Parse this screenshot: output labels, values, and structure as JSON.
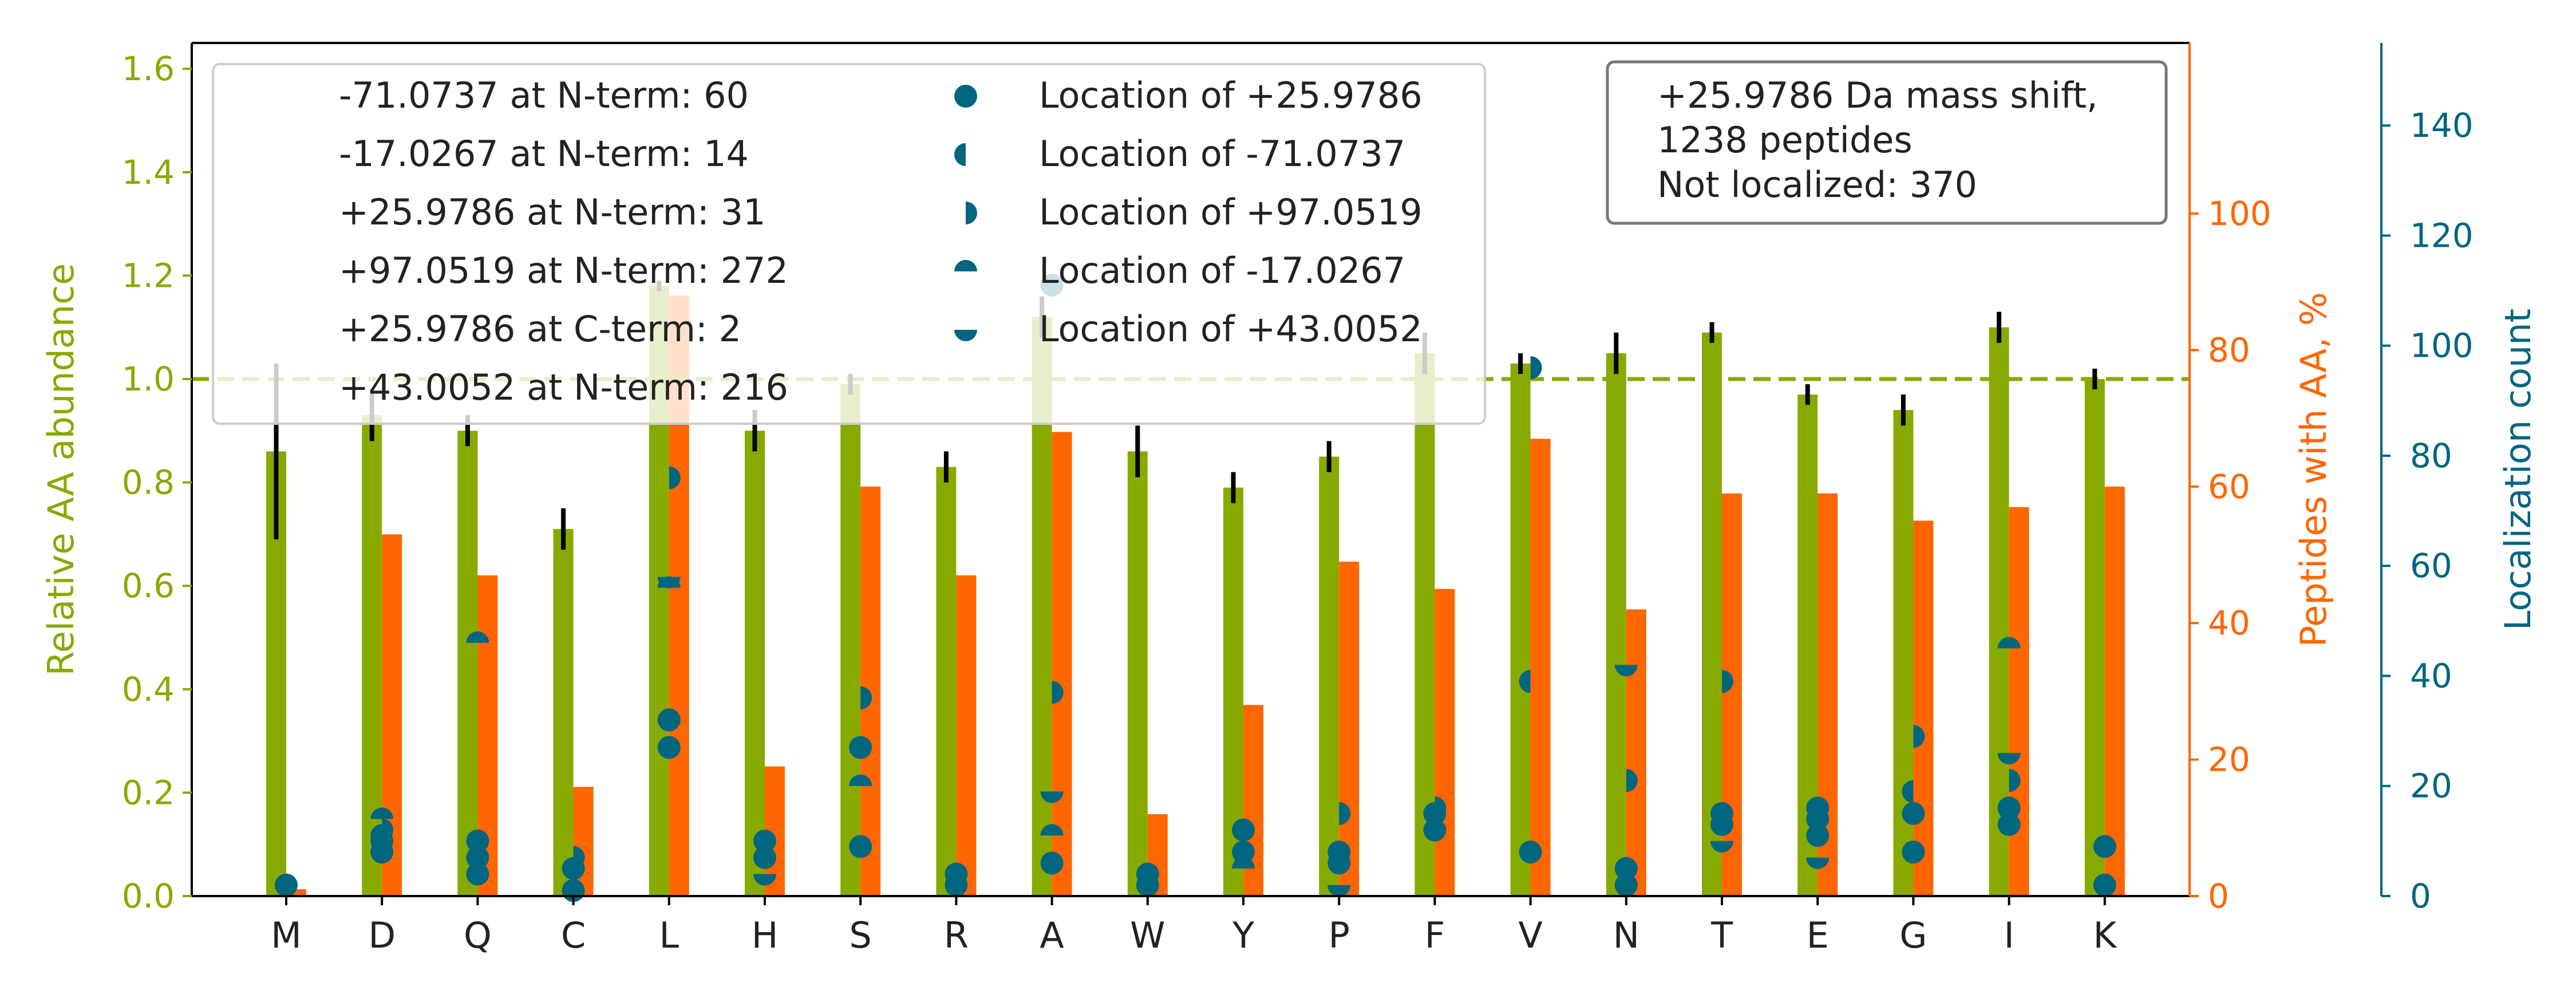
{
  "chart_data": {
    "type": "bar",
    "categories": [
      "M",
      "D",
      "Q",
      "C",
      "L",
      "H",
      "S",
      "R",
      "A",
      "W",
      "Y",
      "P",
      "F",
      "V",
      "N",
      "T",
      "E",
      "G",
      "I",
      "K"
    ],
    "axes": {
      "left": {
        "label": "Relative AA abundance",
        "ylim": [
          0,
          1.65
        ],
        "ticks": [
          "0.0",
          "0.2",
          "0.4",
          "0.6",
          "0.8",
          "1.0",
          "1.2",
          "1.4",
          "1.6"
        ],
        "color": "#88aa00"
      },
      "right1": {
        "label": "Peptides with AA, %",
        "ylim": [
          0,
          125
        ],
        "ticks": [
          "0",
          "20",
          "40",
          "60",
          "80",
          "100"
        ],
        "color": "#ff6600"
      },
      "right2": {
        "label": "Localization count",
        "ylim": [
          0,
          155
        ],
        "ticks": [
          "0",
          "20",
          "40",
          "60",
          "80",
          "100",
          "120",
          "140"
        ],
        "color": "#006680"
      }
    },
    "series": [
      {
        "name": "Relative AA abundance",
        "axis": "left",
        "color": "#88aa00",
        "values": [
          0.86,
          0.93,
          0.9,
          0.71,
          1.18,
          0.9,
          0.99,
          0.83,
          1.12,
          0.86,
          0.79,
          0.85,
          1.05,
          1.03,
          1.05,
          1.09,
          0.97,
          0.94,
          1.1,
          1.0
        ],
        "errors": [
          0.17,
          0.05,
          0.03,
          0.04,
          0.01,
          0.04,
          0.02,
          0.03,
          0.04,
          0.05,
          0.03,
          0.03,
          0.04,
          0.02,
          0.04,
          0.02,
          0.02,
          0.03,
          0.03,
          0.02
        ]
      },
      {
        "name": "Peptides with AA, %",
        "axis": "right1",
        "color": "#ff6600",
        "values": [
          1,
          53,
          47,
          16,
          88,
          19,
          60,
          47,
          68,
          12,
          28,
          49,
          45,
          67,
          42,
          59,
          59,
          55,
          57,
          60
        ]
      }
    ],
    "reference_line": {
      "value": 1.0,
      "axis": "left",
      "style": "dashed",
      "color": "#88aa00"
    },
    "localization_marker_kinds": {
      "full": "Location of +25.9786",
      "left": "Location of -71.0737",
      "right": "Location of +97.0519",
      "top": "Location of -17.0267",
      "bottom": "Location of +43.0052"
    },
    "localizations": [
      {
        "category": "M",
        "points": [
          {
            "kind": "full",
            "count": 2
          }
        ]
      },
      {
        "category": "D",
        "points": [
          {
            "kind": "full",
            "count": 8
          },
          {
            "kind": "full",
            "count": 10
          },
          {
            "kind": "left",
            "count": 11
          },
          {
            "kind": "right",
            "count": 12
          },
          {
            "kind": "top",
            "count": 14
          }
        ]
      },
      {
        "category": "Q",
        "points": [
          {
            "kind": "full",
            "count": 4
          },
          {
            "kind": "full",
            "count": 7
          },
          {
            "kind": "full",
            "count": 10
          },
          {
            "kind": "top",
            "count": 46
          }
        ]
      },
      {
        "category": "C",
        "points": [
          {
            "kind": "full",
            "count": 1
          },
          {
            "kind": "full",
            "count": 5
          },
          {
            "kind": "right",
            "count": 7
          }
        ]
      },
      {
        "category": "L",
        "points": [
          {
            "kind": "full",
            "count": 27
          },
          {
            "kind": "full",
            "count": 32
          },
          {
            "kind": "top",
            "count": 56
          },
          {
            "kind": "bottom",
            "count": 58
          },
          {
            "kind": "right",
            "count": 76
          }
        ]
      },
      {
        "category": "H",
        "points": [
          {
            "kind": "bottom",
            "count": 4
          },
          {
            "kind": "full",
            "count": 7
          },
          {
            "kind": "full",
            "count": 10
          }
        ]
      },
      {
        "category": "S",
        "points": [
          {
            "kind": "full",
            "count": 9
          },
          {
            "kind": "top",
            "count": 20
          },
          {
            "kind": "full",
            "count": 27
          },
          {
            "kind": "right",
            "count": 36
          }
        ]
      },
      {
        "category": "R",
        "points": [
          {
            "kind": "full",
            "count": 2
          },
          {
            "kind": "full",
            "count": 4
          }
        ]
      },
      {
        "category": "A",
        "points": [
          {
            "kind": "full",
            "count": 6
          },
          {
            "kind": "top",
            "count": 11
          },
          {
            "kind": "bottom",
            "count": 19
          },
          {
            "kind": "right",
            "count": 37
          },
          {
            "kind": "full",
            "count": 111
          }
        ]
      },
      {
        "category": "W",
        "points": [
          {
            "kind": "full",
            "count": 2
          },
          {
            "kind": "full",
            "count": 4
          }
        ]
      },
      {
        "category": "Y",
        "points": [
          {
            "kind": "top",
            "count": 5
          },
          {
            "kind": "full",
            "count": 8
          },
          {
            "kind": "full",
            "count": 12
          }
        ]
      },
      {
        "category": "P",
        "points": [
          {
            "kind": "bottom",
            "count": 2
          },
          {
            "kind": "full",
            "count": 6
          },
          {
            "kind": "full",
            "count": 8
          },
          {
            "kind": "right",
            "count": 15
          }
        ]
      },
      {
        "category": "F",
        "points": [
          {
            "kind": "full",
            "count": 12
          },
          {
            "kind": "full",
            "count": 15
          },
          {
            "kind": "right",
            "count": 16
          }
        ]
      },
      {
        "category": "V",
        "points": [
          {
            "kind": "full",
            "count": 8
          },
          {
            "kind": "left",
            "count": 39
          },
          {
            "kind": "right",
            "count": 96
          }
        ]
      },
      {
        "category": "N",
        "points": [
          {
            "kind": "full",
            "count": 2
          },
          {
            "kind": "full",
            "count": 5
          },
          {
            "kind": "right",
            "count": 21
          },
          {
            "kind": "bottom",
            "count": 42
          }
        ]
      },
      {
        "category": "T",
        "points": [
          {
            "kind": "bottom",
            "count": 10
          },
          {
            "kind": "full",
            "count": 13
          },
          {
            "kind": "full",
            "count": 15
          },
          {
            "kind": "right",
            "count": 39
          }
        ]
      },
      {
        "category": "E",
        "points": [
          {
            "kind": "bottom",
            "count": 7
          },
          {
            "kind": "full",
            "count": 11
          },
          {
            "kind": "full",
            "count": 14
          },
          {
            "kind": "full",
            "count": 16
          }
        ]
      },
      {
        "category": "G",
        "points": [
          {
            "kind": "full",
            "count": 8
          },
          {
            "kind": "full",
            "count": 15
          },
          {
            "kind": "left",
            "count": 19
          },
          {
            "kind": "right",
            "count": 29
          }
        ]
      },
      {
        "category": "I",
        "points": [
          {
            "kind": "full",
            "count": 13
          },
          {
            "kind": "full",
            "count": 16
          },
          {
            "kind": "right",
            "count": 21
          },
          {
            "kind": "bottom",
            "count": 26
          },
          {
            "kind": "top",
            "count": 45
          }
        ]
      },
      {
        "category": "K",
        "points": [
          {
            "kind": "full",
            "count": 2
          },
          {
            "kind": "full",
            "count": 9
          }
        ]
      }
    ],
    "legend": {
      "placement": "top-left",
      "text_entries": [
        "-71.0737 at N-term: 60",
        "-17.0267 at N-term: 14",
        "+25.9786 at N-term: 31",
        "+97.0519 at N-term: 272",
        "+25.9786 at C-term: 2",
        "+43.0052 at N-term: 216"
      ],
      "marker_entries": [
        {
          "kind": "full",
          "label": "Location of +25.9786"
        },
        {
          "kind": "left",
          "label": "Location of -71.0737"
        },
        {
          "kind": "right",
          "label": "Location of +97.0519"
        },
        {
          "kind": "top",
          "label": "Location of -17.0267"
        },
        {
          "kind": "bottom",
          "label": "Location of +43.0052"
        }
      ]
    },
    "info_box": {
      "placement": "top-right",
      "lines": [
        "+25.9786 Da mass shift,",
        "1238 peptides",
        "Not localized: 370"
      ]
    }
  }
}
